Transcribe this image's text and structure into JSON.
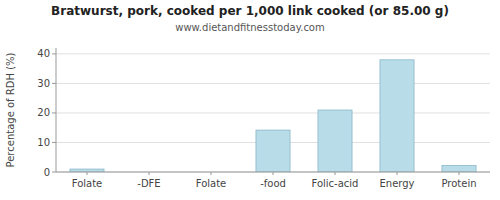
{
  "chart_data": {
    "type": "bar",
    "title": "Bratwurst, pork, cooked per 1,000 link cooked (or 85.00 g)",
    "subtitle": "www.dietandfitnesstoday.com",
    "ylabel": "Percentage of RDH (%)",
    "categories": [
      "Folate",
      "-DFE",
      "Folate",
      "-food",
      "Folic-acid",
      "Energy",
      "Protein"
    ],
    "values": [
      1.0,
      0.0,
      0.0,
      14.2,
      21.0,
      38.0,
      2.2
    ],
    "color": "#b8dce8",
    "ylim": [
      0,
      42
    ],
    "yticks": [
      0,
      10,
      20,
      30,
      40
    ],
    "grid": true
  }
}
